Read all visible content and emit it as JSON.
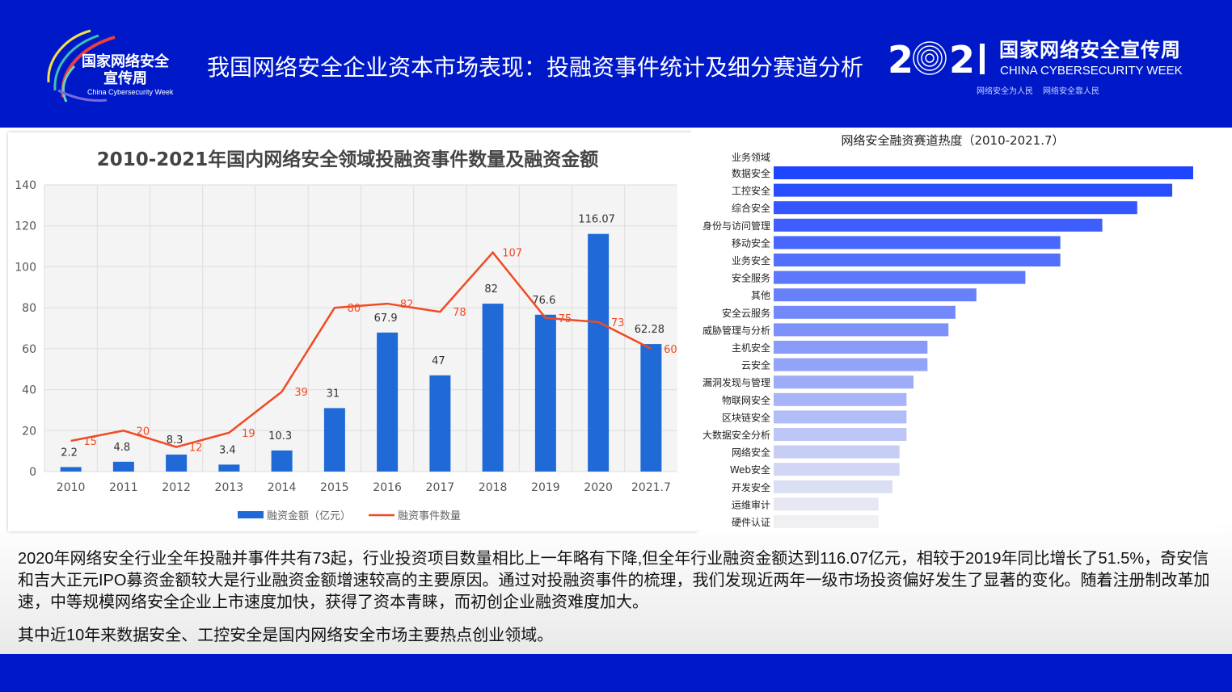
{
  "header": {
    "logo_left_cn": "国家网络安全宣传周",
    "logo_left_en": "China Cybersecurity Week",
    "title": "我国网络安全企业资本市场表现：投融资事件统计及细分赛道分析",
    "logo_year": "2021",
    "week_cn": "国家网络安全宣传周",
    "week_en": "CHINA CYBERSECURITY WEEK",
    "slogan_1": "网络安全为人民",
    "slogan_2": "网络安全靠人民"
  },
  "colors": {
    "header": "#0019c8",
    "bar": "#1f6ad6",
    "line": "#f04a23"
  },
  "chart_data": [
    {
      "type": "bar+line",
      "title": "2010-2021年国内网络安全领域投融资事件数量及融资金额",
      "categories": [
        "2010",
        "2011",
        "2012",
        "2013",
        "2014",
        "2015",
        "2016",
        "2017",
        "2018",
        "2019",
        "2020",
        "2021.7"
      ],
      "series": [
        {
          "name": "融资金额（亿元）",
          "type": "bar",
          "values": [
            2.2,
            4.8,
            8.3,
            3.4,
            10.3,
            31,
            67.9,
            47,
            82,
            76.6,
            116.07,
            62.28
          ]
        },
        {
          "name": "融资事件数量",
          "type": "line",
          "values": [
            15,
            20,
            12,
            19,
            39,
            80,
            82,
            78,
            107,
            75,
            73,
            60
          ]
        }
      ],
      "yticks": [
        0,
        20,
        40,
        60,
        80,
        100,
        120,
        140
      ],
      "ylim": [
        0,
        140
      ],
      "grid": true,
      "legend": "bottom"
    },
    {
      "type": "bar",
      "orientation": "horizontal",
      "title": "网络安全融资赛道热度（2010-2021.7）",
      "axis_title": "业务领域",
      "categories": [
        "数据安全",
        "工控安全",
        "综合安全",
        "身份与访问管理",
        "移动安全",
        "业务安全",
        "安全服务",
        "其他",
        "安全云服务",
        "威胁管理与分析",
        "主机安全",
        "云安全",
        "漏洞发现与管理",
        "物联网安全",
        "区块链安全",
        "大数据安全分析",
        "网络安全",
        "Web安全",
        "开发安全",
        "运维审计",
        "硬件认证"
      ],
      "values": [
        120,
        114,
        104,
        94,
        82,
        82,
        72,
        58,
        52,
        50,
        44,
        44,
        40,
        38,
        38,
        38,
        36,
        36,
        34,
        30,
        30
      ],
      "value_note": "relative heat, no axis shown"
    }
  ],
  "summary": {
    "p1": "2020年网络安全行业全年投融并事件共有73起，行业投资项目数量相比上一年略有下降,但全年行业融资金额达到116.07亿元，相较于2019年同比增长了51.5%，奇安信和吉大正元IPO募资金额较大是行业融资金额增速较高的主要原因。通过对投融资事件的梳理，我们发现近两年一级市场投资偏好发生了显著的变化。随着注册制改革加速，中等规模网络安全企业上市速度加快，获得了资本青睐，而初创企业融资难度加大。",
    "p2": "其中近10年来数据安全、工控安全是国内网络安全市场主要热点创业领域。"
  }
}
